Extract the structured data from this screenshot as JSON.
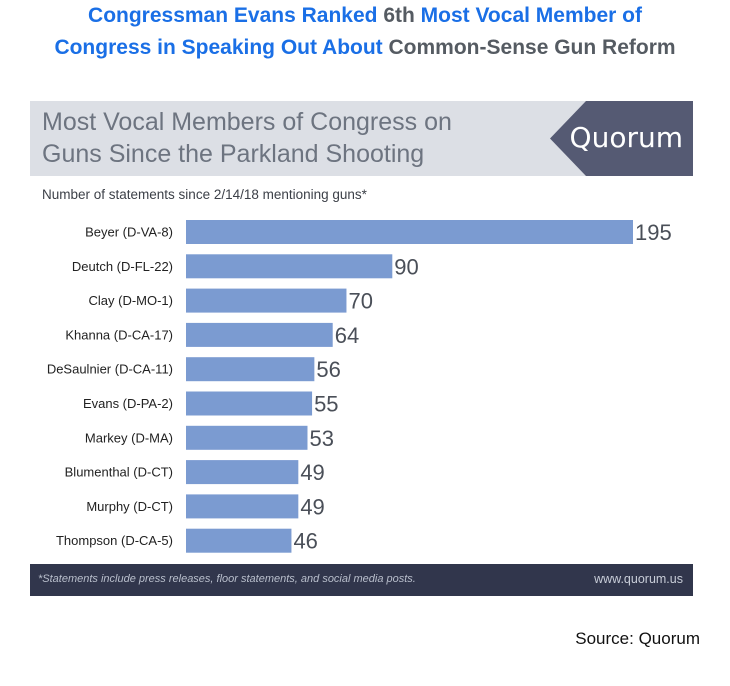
{
  "headline": {
    "line1": [
      {
        "text": "Congressman Evans Ranked ",
        "color": "blue"
      },
      {
        "text": "6th ",
        "color": "gray"
      },
      {
        "text": "Most Vocal Member of",
        "color": "blue"
      }
    ],
    "line2": [
      {
        "text": "Congress in Speaking Out About ",
        "color": "blue"
      },
      {
        "text": "Common-Sense Gun Reform",
        "color": "gray"
      }
    ]
  },
  "banner": {
    "title_line1": "Most Vocal Members of Congress on",
    "title_line2": "Guns Since the Parkland Shooting",
    "logo": "Quorum"
  },
  "subtitle": "Number of statements since 2/14/18 mentioning guns*",
  "chart_data": {
    "type": "bar",
    "orientation": "horizontal",
    "title": "Most Vocal Members of Congress on Guns Since the Parkland Shooting",
    "ylabel": "Number of statements since 2/14/18 mentioning guns*",
    "categories": [
      "Beyer (D-VA-8)",
      "Deutch (D-FL-22)",
      "Clay (D-MO-1)",
      "Khanna (D-CA-17)",
      "DeSaulnier (D-CA-11)",
      "Evans (D-PA-2)",
      "Markey (D-MA)",
      "Blumenthal (D-CT)",
      "Murphy (D-CT)",
      "Thompson (D-CA-5)"
    ],
    "values": [
      195,
      90,
      70,
      64,
      56,
      55,
      53,
      49,
      49,
      46
    ],
    "xlim": [
      0,
      195
    ],
    "bar_color": "#7b9bd1",
    "grid": false
  },
  "footer": {
    "footnote": "*Statements include press releases, floor statements, and social media posts.",
    "website": "www.quorum.us"
  },
  "source": "Source: Quorum",
  "colors": {
    "headline_blue": "#1a6fe6",
    "headline_gray": "#555b62",
    "banner_bg": "#dcdfe5",
    "logo_bg": "#555a73",
    "footer_bg": "#31364c"
  }
}
